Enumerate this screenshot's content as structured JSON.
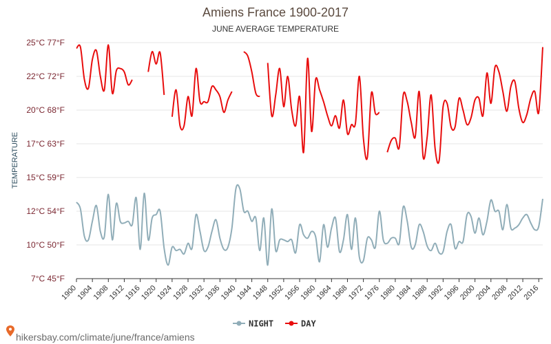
{
  "chart_data": {
    "type": "line",
    "title": "Amiens France 1900-2017",
    "subtitle": "JUNE AVERAGE TEMPERATURE",
    "ylabel": "TEMPERATURE",
    "ylim": [
      7,
      25
    ],
    "y_ticks": [
      {
        "value": 7,
        "label": "7°C 45°F"
      },
      {
        "value": 10,
        "label": "10°C 50°F"
      },
      {
        "value": 12,
        "label": "12°C 54°F"
      },
      {
        "value": 15,
        "label": "15°C 59°F"
      },
      {
        "value": 17,
        "label": "17°C 63°F"
      },
      {
        "value": 20,
        "label": "20°C 68°F"
      },
      {
        "value": 22,
        "label": "22°C 72°F"
      },
      {
        "value": 25,
        "label": "25°C 77°F"
      }
    ],
    "x_ticks": [
      1900,
      1904,
      1908,
      1912,
      1916,
      1920,
      1924,
      1928,
      1932,
      1936,
      1940,
      1944,
      1948,
      1952,
      1956,
      1960,
      1964,
      1968,
      1972,
      1976,
      1980,
      1984,
      1988,
      1992,
      1996,
      2000,
      2004,
      2008,
      2012,
      2016
    ],
    "xlim": [
      1900,
      2017
    ],
    "grid": true,
    "legend_position": "bottom",
    "series": [
      {
        "name": "NIGHT",
        "color": "#90adb8",
        "x": [
          1900,
          1901,
          1902,
          1903,
          1904,
          1905,
          1906,
          1907,
          1908,
          1909,
          1910,
          1911,
          1912,
          1913,
          1914,
          1915,
          1916,
          1917,
          1918,
          1919,
          1920,
          1921,
          1922,
          1923,
          1924,
          1925,
          1926,
          1927,
          1928,
          1929,
          1930,
          1931,
          1932,
          1933,
          1934,
          1935,
          1936,
          1937,
          1938,
          1939,
          1940,
          1941,
          1942,
          1943,
          1944,
          1945,
          1946,
          1947,
          1948,
          1949,
          1950,
          1951,
          1952,
          1953,
          1954,
          1955,
          1956,
          1957,
          1958,
          1959,
          1960,
          1961,
          1962,
          1963,
          1964,
          1965,
          1966,
          1967,
          1968,
          1969,
          1970,
          1971,
          1972,
          1973,
          1974,
          1975,
          1976,
          1977,
          1978,
          1979,
          1980,
          1981,
          1982,
          1983,
          1984,
          1985,
          1986,
          1987,
          1988,
          1989,
          1990,
          1991,
          1992,
          1993,
          1994,
          1995,
          1996,
          1997,
          1998,
          1999,
          2000,
          2001,
          2002,
          2003,
          2004,
          2005,
          2006,
          2007,
          2008,
          2009,
          2010,
          2011,
          2012,
          2013,
          2014,
          2015,
          2016,
          2017
        ],
        "y": [
          12.8,
          12.2,
          10.5,
          10.3,
          11.4,
          12.5,
          10.8,
          10.5,
          13.5,
          10.3,
          12.7,
          11.4,
          11.3,
          11.4,
          11.2,
          13.2,
          9.6,
          13.6,
          10.3,
          11.6,
          11.8,
          12.0,
          9.7,
          8.2,
          9.8,
          9.5,
          9.6,
          9.2,
          10.1,
          9.7,
          11.8,
          10.8,
          9.5,
          9.8,
          10.8,
          11.5,
          10.4,
          9.6,
          9.8,
          11.0,
          14.0,
          14.0,
          12.0,
          12.0,
          11.4,
          11.6,
          9.5,
          11.6,
          8.2,
          12.2,
          9.5,
          10.3,
          10.3,
          10.2,
          10.3,
          9.3,
          11.2,
          10.6,
          10.4,
          10.8,
          10.5,
          8.5,
          11.2,
          9.8,
          11.0,
          11.6,
          9.4,
          10.3,
          11.8,
          9.6,
          11.6,
          8.9,
          8.6,
          10.4,
          10.3,
          9.8,
          12.0,
          10.3,
          10.1,
          10.4,
          10.4,
          10.1,
          12.4,
          11.4,
          9.8,
          10.0,
          11.2,
          10.8,
          9.9,
          9.5,
          10.1,
          9.3,
          9.4,
          10.8,
          11.2,
          9.7,
          10.2,
          10.2,
          11.8,
          11.7,
          10.7,
          11.6,
          10.6,
          11.4,
          13.0,
          12.0,
          12.0,
          10.9,
          12.6,
          11.0,
          11.0,
          11.2,
          11.6,
          11.8,
          11.3,
          10.9,
          11.1,
          13.1
        ]
      },
      {
        "name": "DAY",
        "color": "#e80d0d",
        "x": [
          1900,
          1901,
          1902,
          1903,
          1904,
          1905,
          1906,
          1907,
          1908,
          1909,
          1910,
          1911,
          1912,
          1913,
          1914,
          1915,
          1916,
          1917,
          1918,
          1919,
          1920,
          1921,
          1922,
          1923,
          1924,
          1925,
          1926,
          1927,
          1928,
          1929,
          1930,
          1931,
          1932,
          1933,
          1934,
          1935,
          1936,
          1937,
          1938,
          1939,
          1940,
          1941,
          1942,
          1943,
          1944,
          1945,
          1946,
          1947,
          1948,
          1949,
          1950,
          1951,
          1952,
          1953,
          1954,
          1955,
          1956,
          1957,
          1958,
          1959,
          1960,
          1961,
          1962,
          1963,
          1964,
          1965,
          1966,
          1967,
          1968,
          1969,
          1970,
          1971,
          1972,
          1973,
          1974,
          1975,
          1976,
          1977,
          1978,
          1979,
          1980,
          1981,
          1982,
          1983,
          1984,
          1985,
          1986,
          1987,
          1988,
          1989,
          1990,
          1991,
          1992,
          1993,
          1994,
          1995,
          1996,
          1997,
          1998,
          1999,
          2000,
          2001,
          2002,
          2003,
          2004,
          2005,
          2006,
          2007,
          2008,
          2009,
          2010,
          2011,
          2012,
          2013,
          2014,
          2015,
          2016,
          2017
        ],
        "y": [
          24.5,
          24.6,
          21.8,
          21.3,
          23.5,
          24.3,
          22.0,
          21.2,
          24.8,
          21.0,
          22.5,
          22.7,
          22.4,
          21.5,
          21.8,
          null,
          null,
          null,
          22.4,
          24.2,
          23.1,
          24.1,
          20.9,
          null,
          19.4,
          21.2,
          18.6,
          18.6,
          20.8,
          19.5,
          22.7,
          20.5,
          20.5,
          20.5,
          21.4,
          21.2,
          20.8,
          19.8,
          20.6,
          21.1,
          null,
          null,
          24.2,
          23.8,
          22.4,
          21.0,
          20.8,
          null,
          23.2,
          19.5,
          20.9,
          22.7,
          20.2,
          22.0,
          20.0,
          18.6,
          20.8,
          16.5,
          23.6,
          18.1,
          21.8,
          21.2,
          20.5,
          19.5,
          18.6,
          19.5,
          18.4,
          20.6,
          17.9,
          18.7,
          18.8,
          22.0,
          17.5,
          16.2,
          21.0,
          19.7,
          19.8,
          null,
          16.5,
          17.3,
          17.5,
          16.8,
          20.9,
          20.5,
          18.9,
          17.6,
          21.1,
          16.2,
          17.6,
          20.9,
          16.7,
          16.0,
          20.2,
          20.4,
          18.5,
          18.5,
          20.7,
          20.0,
          18.7,
          19.3,
          20.6,
          20.7,
          19.5,
          22.3,
          20.4,
          22.8,
          22.4,
          21.1,
          19.9,
          21.4,
          21.7,
          20.1,
          18.9,
          19.6,
          20.7,
          21.1,
          19.8,
          24.6
        ]
      }
    ]
  },
  "footer_text": "hikersbay.com/climate/june/france/amiens"
}
